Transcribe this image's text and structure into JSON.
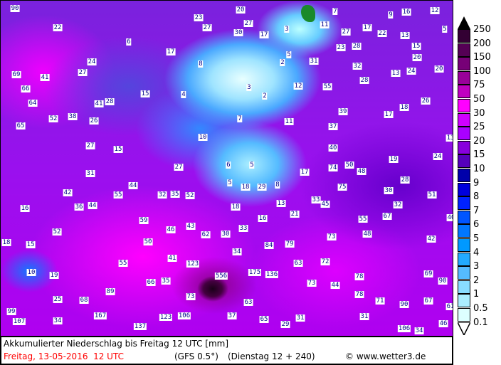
{
  "map": {
    "labels": [
      "90",
      "20",
      "7",
      "9",
      "16",
      "12",
      "23",
      "27",
      "27",
      "3",
      "11",
      "27",
      "17",
      "22",
      "13",
      "5",
      "22",
      "6",
      "30",
      "17",
      "23",
      "28",
      "15",
      "24",
      "17",
      "5",
      "8",
      "2",
      "31",
      "32",
      "20",
      "20",
      "27",
      "69",
      "41",
      "13",
      "24",
      "66",
      "12",
      "55",
      "28",
      "15",
      "4",
      "3",
      "2",
      "64",
      "28",
      "41",
      "18",
      "26",
      "52",
      "38",
      "26",
      "7",
      "11",
      "39",
      "17",
      "65",
      "37",
      "10",
      "13",
      "27",
      "15",
      "40",
      "19",
      "24",
      "6",
      "5",
      "27",
      "17",
      "74",
      "50",
      "48",
      "31",
      "28",
      "44",
      "5",
      "18",
      "29",
      "8",
      "75",
      "30",
      "51",
      "42",
      "55",
      "32",
      "35",
      "52",
      "33",
      "45",
      "32",
      "36",
      "44",
      "16",
      "18",
      "13",
      "21",
      "55",
      "67",
      "40",
      "59",
      "16",
      "52",
      "46",
      "43",
      "62",
      "30",
      "33",
      "73",
      "48",
      "42",
      "18",
      "15",
      "50",
      "79",
      "84",
      "34",
      "55",
      "41",
      "123",
      "63",
      "72",
      "10",
      "19",
      "556",
      "175",
      "136",
      "78",
      "69",
      "66",
      "35",
      "73",
      "44",
      "90",
      "89",
      "25",
      "68",
      "73",
      "63",
      "78",
      "71",
      "67",
      "90",
      "99",
      "167",
      "123",
      "106",
      "37",
      "65",
      "31",
      "31",
      "61",
      "107",
      "34",
      "137",
      "29",
      "106",
      "34",
      "46"
    ]
  },
  "legend": {
    "levels": [
      "250",
      "200",
      "150",
      "100",
      "75",
      "50",
      "30",
      "25",
      "20",
      "15",
      "10",
      "9",
      "8",
      "7",
      "6",
      "5",
      "4",
      "3",
      "2",
      "1",
      "0.5",
      "0.1"
    ],
    "colors": [
      "#330033",
      "#550055",
      "#770077",
      "#990099",
      "#c000c0",
      "#ff00ff",
      "#d000ff",
      "#aa00ff",
      "#8800dd",
      "#5500bb",
      "#0000aa",
      "#0000dd",
      "#0022ff",
      "#0055ff",
      "#0077ff",
      "#0099ff",
      "#22aaff",
      "#55bbff",
      "#88ddff",
      "#aaeeff",
      "#ddffff"
    ],
    "top_arrow_color": "#000000",
    "bottom_arrow_color": "#ffffff"
  },
  "footer": {
    "title": "Akkumulierter Niederschlag bis Freitag 12 UTC [mm]",
    "valid": "Freitag, 13-05-2016  12 UTC",
    "model": "(GFS 0.5°)",
    "run": "(Dienstag 12 + 240)",
    "copyright": "© www.wetter3.de",
    "valid_color": "#ff0000"
  }
}
